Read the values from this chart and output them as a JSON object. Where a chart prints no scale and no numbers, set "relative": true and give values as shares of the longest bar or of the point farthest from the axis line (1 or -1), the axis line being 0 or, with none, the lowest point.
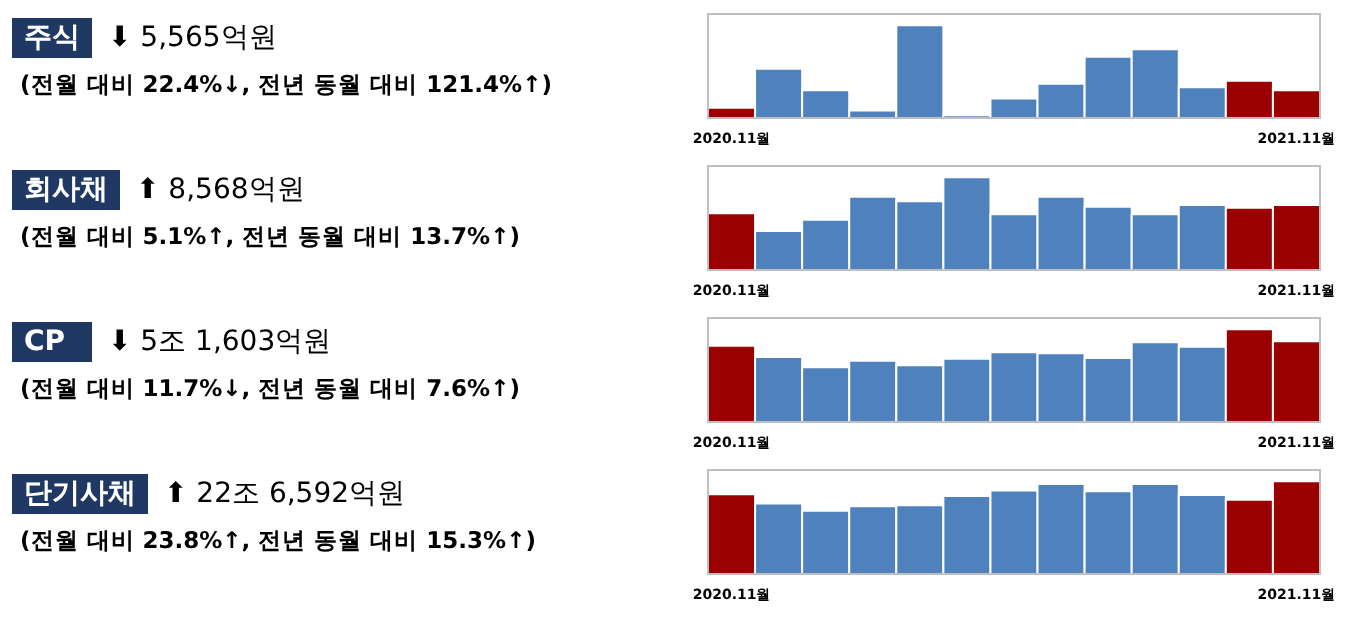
{
  "chart_data": [
    {
      "type": "bar",
      "relative": true,
      "annotations": [
        "주식",
        "⬇ 5,565억원",
        "(전월 대비 22.4%↓, 전년 동월 대비 121.4%↑)"
      ],
      "categories": [
        "2020.11월",
        null,
        null,
        null,
        null,
        null,
        null,
        null,
        null,
        null,
        null,
        null,
        "2021.11월"
      ],
      "values": [
        0.11,
        0.53,
        0.3,
        0.08,
        1,
        0.03,
        0.21,
        0.37,
        0.66,
        0.74,
        0.33,
        0.4,
        0.3
      ],
      "colors": [
        "#9b0000",
        "#4f81bd",
        "#4f81bd",
        "#4f81bd",
        "#4f81bd",
        "#4f81bd",
        "#4f81bd",
        "#4f81bd",
        "#4f81bd",
        "#4f81bd",
        "#4f81bd",
        "#9b0000",
        "#9b0000"
      ]
    },
    {
      "type": "bar",
      "relative": true,
      "annotations": [
        "회사채",
        "⬆ 8,568억원",
        "(전월 대비 5.1%↑, 전년 동월 대비 13.7%↑)"
      ],
      "categories": [
        "2020.11월",
        null,
        null,
        null,
        null,
        null,
        null,
        null,
        null,
        null,
        null,
        null,
        "2021.11월"
      ],
      "values": [
        0.61,
        0.42,
        0.54,
        0.79,
        0.74,
        1,
        0.6,
        0.79,
        0.68,
        0.6,
        0.7,
        0.67,
        0.7
      ],
      "colors": [
        "#9b0000",
        "#4f81bd",
        "#4f81bd",
        "#4f81bd",
        "#4f81bd",
        "#4f81bd",
        "#4f81bd",
        "#4f81bd",
        "#4f81bd",
        "#4f81bd",
        "#4f81bd",
        "#9b0000",
        "#9b0000"
      ]
    },
    {
      "type": "bar",
      "relative": true,
      "annotations": [
        "CP",
        "⬇ 5조 1,603억원",
        "(전월 대비 11.7%↓, 전년 동월 대비 7.6%↑)"
      ],
      "categories": [
        "2020.11월",
        null,
        null,
        null,
        null,
        null,
        null,
        null,
        null,
        null,
        null,
        null,
        "2021.11월"
      ],
      "values": [
        0.82,
        0.7,
        0.59,
        0.66,
        0.61,
        0.68,
        0.75,
        0.74,
        0.69,
        0.86,
        0.81,
        1,
        0.87
      ],
      "colors": [
        "#9b0000",
        "#4f81bd",
        "#4f81bd",
        "#4f81bd",
        "#4f81bd",
        "#4f81bd",
        "#4f81bd",
        "#4f81bd",
        "#4f81bd",
        "#4f81bd",
        "#4f81bd",
        "#9b0000",
        "#9b0000"
      ]
    },
    {
      "type": "bar",
      "relative": true,
      "annotations": [
        "단기사채",
        "⬆ 22조 6,592억원",
        "(전월 대비 23.8%↑, 전년 동월 대비 15.3%↑)"
      ],
      "categories": [
        "2020.11월",
        null,
        null,
        null,
        null,
        null,
        null,
        null,
        null,
        null,
        null,
        null,
        "2021.11월"
      ],
      "values": [
        0.86,
        0.76,
        0.68,
        0.73,
        0.74,
        0.84,
        0.9,
        0.97,
        0.89,
        0.97,
        0.85,
        0.8,
        1
      ],
      "colors": [
        "#9b0000",
        "#4f81bd",
        "#4f81bd",
        "#4f81bd",
        "#4f81bd",
        "#4f81bd",
        "#4f81bd",
        "#4f81bd",
        "#4f81bd",
        "#4f81bd",
        "#4f81bd",
        "#9b0000",
        "#9b0000"
      ]
    }
  ]
}
